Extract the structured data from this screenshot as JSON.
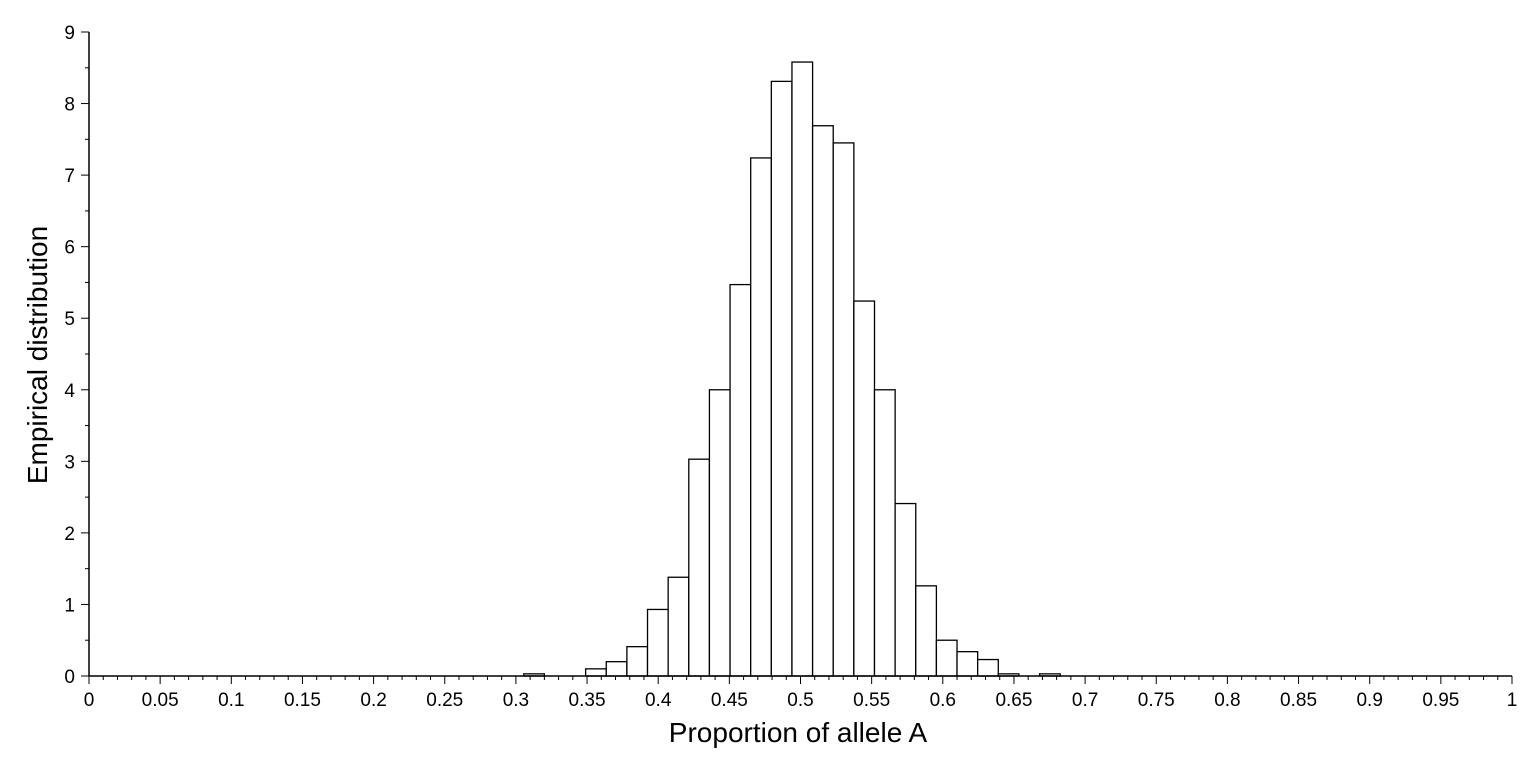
{
  "chart_data": {
    "type": "bar",
    "title": "",
    "xlabel": "Proportion of allele A",
    "ylabel": "Empirical distribution",
    "xlim": [
      0,
      1
    ],
    "ylim": [
      0,
      9
    ],
    "grid": false,
    "bin_width": 0.0145,
    "x_ticks": [
      "0",
      "0.05",
      "0.1",
      "0.15",
      "0.2",
      "0.25",
      "0.3",
      "0.35",
      "0.4",
      "0.45",
      "0.5",
      "0.55",
      "0.6",
      "0.65",
      "0.7",
      "0.75",
      "0.8",
      "0.85",
      "0.9",
      "0.95",
      "1"
    ],
    "y_ticks": [
      "0",
      "1",
      "2",
      "3",
      "4",
      "5",
      "6",
      "7",
      "8",
      "9"
    ],
    "bins": [
      {
        "x0": 0.3055,
        "x1": 0.32,
        "value": 0.03
      },
      {
        "x0": 0.349,
        "x1": 0.3635,
        "value": 0.1
      },
      {
        "x0": 0.3635,
        "x1": 0.378,
        "value": 0.2
      },
      {
        "x0": 0.378,
        "x1": 0.3925,
        "value": 0.41
      },
      {
        "x0": 0.3925,
        "x1": 0.407,
        "value": 0.93
      },
      {
        "x0": 0.407,
        "x1": 0.4215,
        "value": 1.38
      },
      {
        "x0": 0.4215,
        "x1": 0.436,
        "value": 3.03
      },
      {
        "x0": 0.436,
        "x1": 0.4505,
        "value": 4.0
      },
      {
        "x0": 0.4505,
        "x1": 0.465,
        "value": 5.47
      },
      {
        "x0": 0.465,
        "x1": 0.4795,
        "value": 7.24
      },
      {
        "x0": 0.4795,
        "x1": 0.494,
        "value": 8.31
      },
      {
        "x0": 0.494,
        "x1": 0.5085,
        "value": 8.58
      },
      {
        "x0": 0.5085,
        "x1": 0.523,
        "value": 7.69
      },
      {
        "x0": 0.523,
        "x1": 0.5375,
        "value": 7.45
      },
      {
        "x0": 0.5375,
        "x1": 0.552,
        "value": 5.24
      },
      {
        "x0": 0.552,
        "x1": 0.5665,
        "value": 4.0
      },
      {
        "x0": 0.5665,
        "x1": 0.581,
        "value": 2.41
      },
      {
        "x0": 0.581,
        "x1": 0.5955,
        "value": 1.26
      },
      {
        "x0": 0.5955,
        "x1": 0.61,
        "value": 0.5
      },
      {
        "x0": 0.61,
        "x1": 0.6245,
        "value": 0.34
      },
      {
        "x0": 0.6245,
        "x1": 0.639,
        "value": 0.23
      },
      {
        "x0": 0.639,
        "x1": 0.6535,
        "value": 0.03
      },
      {
        "x0": 0.668,
        "x1": 0.6825,
        "value": 0.03
      }
    ]
  }
}
